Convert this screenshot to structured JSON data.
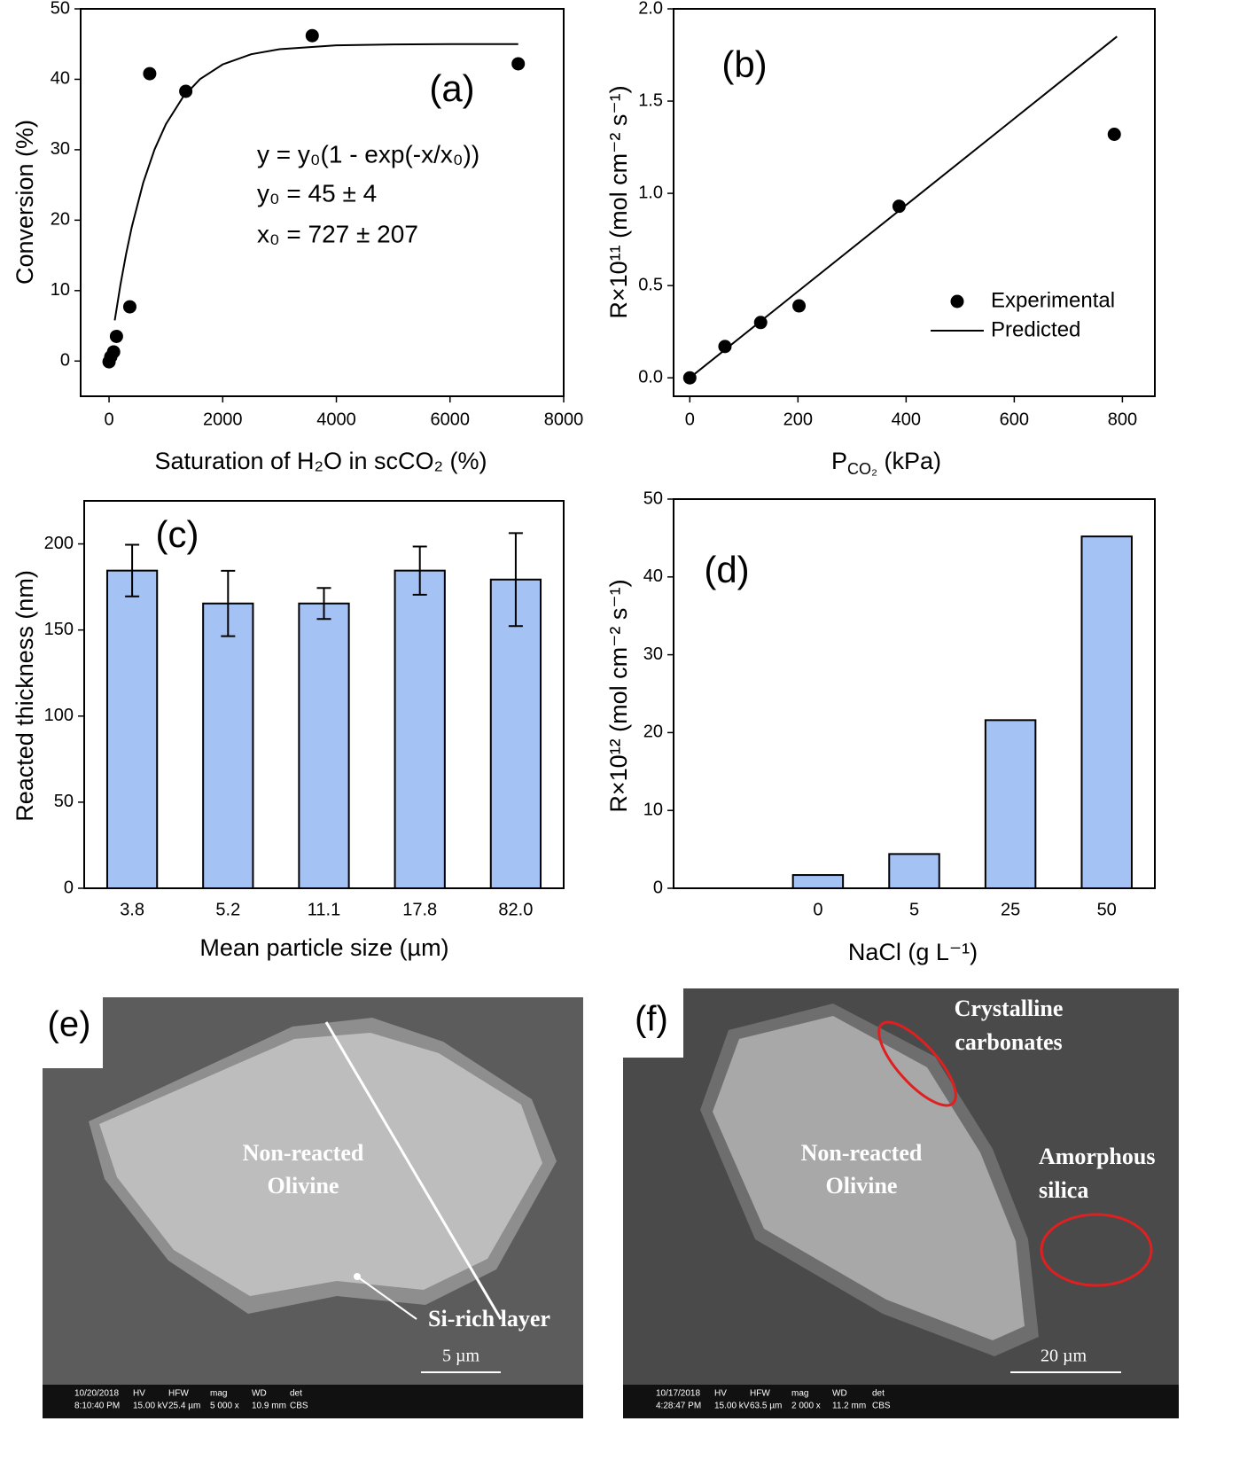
{
  "chart_data": [
    {
      "type": "scatter",
      "annotations": [
        "(a)",
        "y = y₀(1 - exp(-x/x₀))",
        "y₀ = 45 ± 4",
        "x₀ = 727 ± 207"
      ],
      "x_label": "Saturation of H₂O in scCO₂ (%)",
      "y_label": "Conversion (%)",
      "xlim": [
        -500,
        8000
      ],
      "ylim": [
        -5,
        50
      ],
      "xticks": [
        0,
        2000,
        4000,
        6000,
        8000
      ],
      "yticks": [
        0,
        10,
        20,
        30,
        40,
        50
      ],
      "series": [
        {
          "type": "scatter",
          "color": "#000000",
          "x": [
            0,
            30,
            80,
            130,
            365,
            715,
            1350,
            3575,
            7200
          ],
          "values": [
            -0.1,
            0.6,
            1.3,
            3.5,
            7.7,
            40.8,
            38.3,
            46.2,
            42.2
          ]
        },
        {
          "type": "line",
          "color": "#000000",
          "x": [
            100,
            200,
            300,
            400,
            600,
            800,
            1000,
            1300,
            1600,
            2000,
            2500,
            3000,
            4000,
            5000,
            6000,
            7200
          ],
          "values": [
            5.78,
            10.82,
            15.21,
            19.04,
            25.29,
            30.03,
            33.63,
            37.47,
            40.02,
            42.12,
            43.56,
            44.27,
            44.82,
            44.95,
            45.0,
            45.0
          ]
        }
      ]
    },
    {
      "type": "scatter",
      "annotations": [
        "(b)"
      ],
      "x_label": {
        "text": "P",
        "subscript": "CO₂",
        "suffix": " (kPa)"
      },
      "y_label": "R×10¹¹ (mol cm⁻² s⁻¹)",
      "xlim": [
        -30,
        860
      ],
      "ylim": [
        -0.1,
        2.0
      ],
      "xticks": [
        0,
        200,
        400,
        600,
        800
      ],
      "yticks": [
        {
          "value": 0,
          "label": "0.0"
        },
        0.5,
        {
          "value": 1,
          "label": "1.0"
        },
        1.5,
        {
          "value": 2,
          "label": "2.0"
        }
      ],
      "legend": "lower right",
      "series": [
        {
          "name": "Experimental",
          "type": "scatter",
          "color": "#000000",
          "x": [
            0,
            65,
            131,
            202,
            387,
            785
          ],
          "values": [
            0,
            0.17,
            0.3,
            0.39,
            0.93,
            1.32
          ]
        },
        {
          "name": "Predicted",
          "type": "line",
          "color": "#000000",
          "x": [
            0,
            790
          ],
          "values": [
            0,
            1.85
          ]
        }
      ]
    },
    {
      "type": "bar",
      "annotations": [
        "(c)"
      ],
      "x_label": "Mean particle size (µm)",
      "y_label": "Reacted thickness (nm)",
      "ylim": [
        0,
        225
      ],
      "yticks": [
        0,
        50,
        100,
        150,
        200
      ],
      "categories": [
        "3.8",
        "5.2",
        "11.1",
        "17.8",
        "82.0"
      ],
      "values": [
        184.5,
        165.4,
        165.4,
        184.5,
        179.3
      ],
      "errors": [
        15,
        19,
        9,
        14,
        27
      ],
      "color": "#a4c2f4"
    },
    {
      "type": "bar",
      "annotations": [
        "(d)"
      ],
      "x_label": "NaCl (g L⁻¹)",
      "y_label": "R×10¹² (mol cm⁻² s⁻¹)",
      "ylim": [
        0,
        50
      ],
      "yticks": [
        0,
        10,
        20,
        30,
        40,
        50
      ],
      "categories": [
        "0",
        "5",
        "25",
        "50"
      ],
      "values": [
        1.7,
        4.4,
        21.6,
        45.2
      ],
      "color": "#a4c2f4"
    }
  ],
  "images": [
    {
      "label": "(e)",
      "annotations": [
        {
          "lines": [
            "Non-reacted",
            "Olivine"
          ]
        },
        {
          "lines": [
            "Si-rich layer"
          ]
        }
      ],
      "scale_bar": "5 µm",
      "info_bar": [
        {
          "lines": [
            "10/20/2018",
            "8:10:40 PM"
          ]
        },
        {
          "lines": [
            "HV",
            "15.00 kV"
          ]
        },
        {
          "lines": [
            "HFW",
            "25.4 µm"
          ]
        },
        {
          "lines": [
            "mag",
            "5 000 x"
          ]
        },
        {
          "lines": [
            "WD",
            "10.9 mm"
          ]
        },
        {
          "lines": [
            "det",
            "CBS"
          ]
        }
      ]
    },
    {
      "label": "(f)",
      "annotations": [
        {
          "lines": [
            "Crystalline",
            "carbonates"
          ]
        },
        {
          "lines": [
            "Non-reacted",
            "Olivine"
          ]
        },
        {
          "lines": [
            "Amorphous",
            "silica"
          ]
        }
      ],
      "scale_bar": "20 µm",
      "info_bar": [
        {
          "lines": [
            "10/17/2018",
            "4:28:47 PM"
          ]
        },
        {
          "lines": [
            "HV",
            "15.00 kV"
          ]
        },
        {
          "lines": [
            "HFW",
            "63.5 µm"
          ]
        },
        {
          "lines": [
            "mag",
            "2 000 x"
          ]
        },
        {
          "lines": [
            "WD",
            "11.2 mm"
          ]
        },
        {
          "lines": [
            "det",
            "CBS"
          ]
        }
      ]
    }
  ]
}
